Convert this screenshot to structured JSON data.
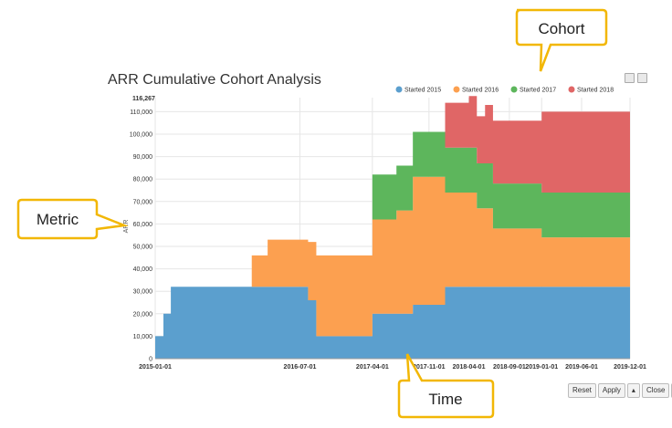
{
  "chart_data": {
    "type": "area",
    "title": "ARR Cumulative Cohort Analysis",
    "ylabel": "ARR",
    "xlabel": "",
    "y_top_label": "116,267",
    "ylim": [
      0,
      116267
    ],
    "yticks": [
      0,
      10000,
      20000,
      30000,
      40000,
      50000,
      60000,
      70000,
      80000,
      90000,
      100000,
      110000
    ],
    "ytick_labels": [
      "0",
      "10,000",
      "20,000",
      "30,000",
      "40,000",
      "50,000",
      "60,000",
      "70,000",
      "80,000",
      "90,000",
      "100,000",
      "110,000"
    ],
    "xlim": [
      "2015-01-01",
      "2019-12-01"
    ],
    "xticks": [
      "2015-01-01",
      "2016-07-01",
      "2017-04-01",
      "2017-11-01",
      "2018-04-01",
      "2018-09-01",
      "2019-01-01",
      "2019-06-01",
      "2019-12-01"
    ],
    "stacked": true,
    "step": true,
    "legend_position": "top-right",
    "x": [
      "2015-01-01",
      "2015-02-01",
      "2015-03-01",
      "2015-04-01",
      "2016-01-01",
      "2016-03-01",
      "2016-08-01",
      "2016-09-01",
      "2016-11-01",
      "2017-04-01",
      "2017-06-01",
      "2017-07-01",
      "2017-09-01",
      "2017-11-01",
      "2018-01-01",
      "2018-02-01",
      "2018-04-01",
      "2018-05-01",
      "2018-06-01",
      "2018-07-01",
      "2018-11-01",
      "2019-01-01",
      "2019-12-01"
    ],
    "series": [
      {
        "name": "Started 2015",
        "color": "#5b9fce",
        "values": [
          10000,
          20000,
          32000,
          32000,
          32000,
          32000,
          26000,
          10000,
          10000,
          20000,
          20000,
          20000,
          24000,
          24000,
          32000,
          32000,
          32000,
          32000,
          32000,
          32000,
          32000,
          32000,
          32000
        ]
      },
      {
        "name": "Started 2016",
        "color": "#fca050",
        "values": [
          0,
          0,
          0,
          0,
          14000,
          21000,
          26000,
          36000,
          36000,
          42000,
          42000,
          46000,
          57000,
          57000,
          42000,
          42000,
          42000,
          35000,
          35000,
          26000,
          26000,
          22000,
          22000
        ]
      },
      {
        "name": "Started 2017",
        "color": "#5db65c",
        "values": [
          0,
          0,
          0,
          0,
          0,
          0,
          0,
          0,
          0,
          20000,
          20000,
          20000,
          20000,
          20000,
          20000,
          20000,
          20000,
          20000,
          20000,
          20000,
          20000,
          20000,
          20000
        ]
      },
      {
        "name": "Started 2018",
        "color": "#e06666",
        "values": [
          0,
          0,
          0,
          0,
          0,
          0,
          0,
          0,
          0,
          0,
          0,
          0,
          0,
          0,
          20000,
          20000,
          23000,
          21000,
          26000,
          28000,
          28000,
          36000,
          36000
        ]
      }
    ]
  },
  "callouts": {
    "cohort": "Cohort",
    "metric": "Metric",
    "time": "Time"
  },
  "toolbar": {
    "reset": "Reset",
    "apply": "Apply",
    "apply_arrow": "▴",
    "close": "Close",
    "close_arrow": "▴"
  },
  "colors": {
    "callout_border": "#f2b705",
    "callout_fill": "#ffffff"
  }
}
